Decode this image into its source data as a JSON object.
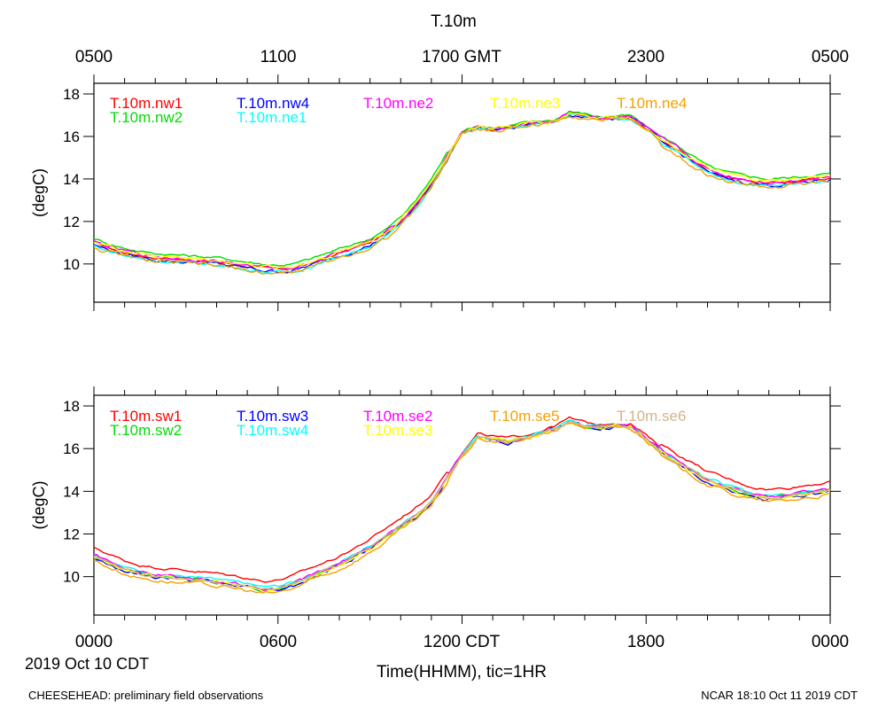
{
  "title": "T.10m",
  "top_axis": {
    "labels": [
      "0500",
      "1100",
      "1700 GMT",
      "2300",
      "0500"
    ]
  },
  "bottom_axis": {
    "labels": [
      "0000",
      "0600",
      "1200 CDT",
      "1800",
      "0000"
    ],
    "date": "2019 Oct 10 CDT",
    "xlabel": "Time(HHMM), tic=1HR"
  },
  "footer": {
    "left": "CHEESEHEAD: preliminary field observations",
    "right": "NCAR 18:10 Oct 11 2019 CDT"
  },
  "chart_data": [
    {
      "type": "line",
      "ylabel": "(degC)",
      "xlim": [
        0,
        24
      ],
      "ylim": [
        8.2,
        18.5
      ],
      "yticks": [
        10,
        12,
        14,
        16,
        18
      ],
      "base": [
        [
          0,
          11.0
        ],
        [
          0.5,
          10.75
        ],
        [
          1,
          10.55
        ],
        [
          1.5,
          10.4
        ],
        [
          2,
          10.3
        ],
        [
          3,
          10.2
        ],
        [
          4,
          10.1
        ],
        [
          5,
          9.9
        ],
        [
          5.5,
          9.8
        ],
        [
          6,
          9.75
        ],
        [
          6.5,
          9.8
        ],
        [
          7,
          10.0
        ],
        [
          7.5,
          10.25
        ],
        [
          8,
          10.5
        ],
        [
          8.5,
          10.75
        ],
        [
          9,
          11.0
        ],
        [
          9.5,
          11.4
        ],
        [
          10,
          12.0
        ],
        [
          10.5,
          12.8
        ],
        [
          11,
          13.8
        ],
        [
          11.5,
          15.0
        ],
        [
          12,
          16.2
        ],
        [
          12.5,
          16.45
        ],
        [
          13,
          16.35
        ],
        [
          13.5,
          16.4
        ],
        [
          14,
          16.55
        ],
        [
          14.5,
          16.65
        ],
        [
          15,
          16.7
        ],
        [
          15.5,
          17.1
        ],
        [
          16,
          17.0
        ],
        [
          16.5,
          16.85
        ],
        [
          17,
          16.9
        ],
        [
          17.5,
          16.9
        ],
        [
          18,
          16.4
        ],
        [
          18.5,
          15.8
        ],
        [
          19,
          15.4
        ],
        [
          19.5,
          14.9
        ],
        [
          20,
          14.4
        ],
        [
          20.5,
          14.15
        ],
        [
          21,
          14.0
        ],
        [
          21.5,
          13.9
        ],
        [
          22,
          13.8
        ],
        [
          22.5,
          13.85
        ],
        [
          23,
          13.9
        ],
        [
          23.5,
          14.0
        ],
        [
          24,
          14.05
        ]
      ],
      "series": [
        {
          "name": "T.10m.nw1",
          "color": "#ff0000",
          "offset": 0.0,
          "amp": 0.1
        },
        {
          "name": "T.10m.nw2",
          "color": "#00dd00",
          "offset": 0.2,
          "amp": 0.1
        },
        {
          "name": "T.10m.nw4",
          "color": "#0000ff",
          "offset": -0.1,
          "amp": 0.14
        },
        {
          "name": "T.10m.ne1",
          "color": "#00ffff",
          "offset": -0.15,
          "amp": 0.1
        },
        {
          "name": "T.10m.ne2",
          "color": "#ff00ff",
          "offset": 0.05,
          "amp": 0.12
        },
        {
          "name": "T.10m.ne3",
          "color": "#ffff00",
          "offset": 0.08,
          "amp": 0.15
        },
        {
          "name": "T.10m.ne4",
          "color": "#f5a000",
          "offset": -0.2,
          "amp": 0.18
        }
      ]
    },
    {
      "type": "line",
      "ylabel": "(degC)",
      "xlim": [
        0,
        24
      ],
      "ylim": [
        8.2,
        18.5
      ],
      "yticks": [
        10,
        12,
        14,
        16,
        18
      ],
      "base": [
        [
          0,
          11.0
        ],
        [
          0.5,
          10.7
        ],
        [
          1,
          10.4
        ],
        [
          1.5,
          10.2
        ],
        [
          2,
          10.1
        ],
        [
          3,
          9.95
        ],
        [
          4,
          9.8
        ],
        [
          5,
          9.6
        ],
        [
          5.5,
          9.45
        ],
        [
          6,
          9.5
        ],
        [
          6.5,
          9.7
        ],
        [
          7,
          10.0
        ],
        [
          7.5,
          10.3
        ],
        [
          8,
          10.6
        ],
        [
          8.5,
          11.0
        ],
        [
          9,
          11.4
        ],
        [
          9.5,
          11.9
        ],
        [
          10,
          12.4
        ],
        [
          10.5,
          12.9
        ],
        [
          11,
          13.5
        ],
        [
          11.5,
          14.6
        ],
        [
          12,
          15.7
        ],
        [
          12.5,
          16.55
        ],
        [
          13,
          16.45
        ],
        [
          13.5,
          16.35
        ],
        [
          14,
          16.5
        ],
        [
          14.5,
          16.7
        ],
        [
          15,
          16.95
        ],
        [
          15.5,
          17.3
        ],
        [
          16,
          17.1
        ],
        [
          16.5,
          17.0
        ],
        [
          17,
          17.1
        ],
        [
          17.5,
          17.05
        ],
        [
          18,
          16.5
        ],
        [
          18.5,
          15.9
        ],
        [
          19,
          15.4
        ],
        [
          19.5,
          15.0
        ],
        [
          20,
          14.6
        ],
        [
          20.5,
          14.3
        ],
        [
          21,
          14.05
        ],
        [
          21.5,
          13.85
        ],
        [
          22,
          13.75
        ],
        [
          22.5,
          13.8
        ],
        [
          23,
          13.9
        ],
        [
          23.5,
          14.0
        ],
        [
          24,
          14.1
        ]
      ],
      "series": [
        {
          "name": "T.10m.sw1",
          "color": "#ff0000",
          "offset": 0.35,
          "amp": 0.1
        },
        {
          "name": "T.10m.sw2",
          "color": "#00dd00",
          "offset": -0.05,
          "amp": 0.12
        },
        {
          "name": "T.10m.sw3",
          "color": "#0000ff",
          "offset": -0.1,
          "amp": 0.15
        },
        {
          "name": "T.10m.sw4",
          "color": "#00ffff",
          "offset": 0.05,
          "amp": 0.1
        },
        {
          "name": "T.10m.se2",
          "color": "#ff00ff",
          "offset": 0.0,
          "amp": 0.12
        },
        {
          "name": "T.10m.se3",
          "color": "#ffff00",
          "offset": -0.08,
          "amp": 0.13
        },
        {
          "name": "T.10m.se5",
          "color": "#f5a000",
          "offset": -0.25,
          "amp": 0.15
        },
        {
          "name": "T.10m.se6",
          "color": "#d2b48c",
          "offset": -0.05,
          "amp": 0.1
        }
      ]
    }
  ]
}
